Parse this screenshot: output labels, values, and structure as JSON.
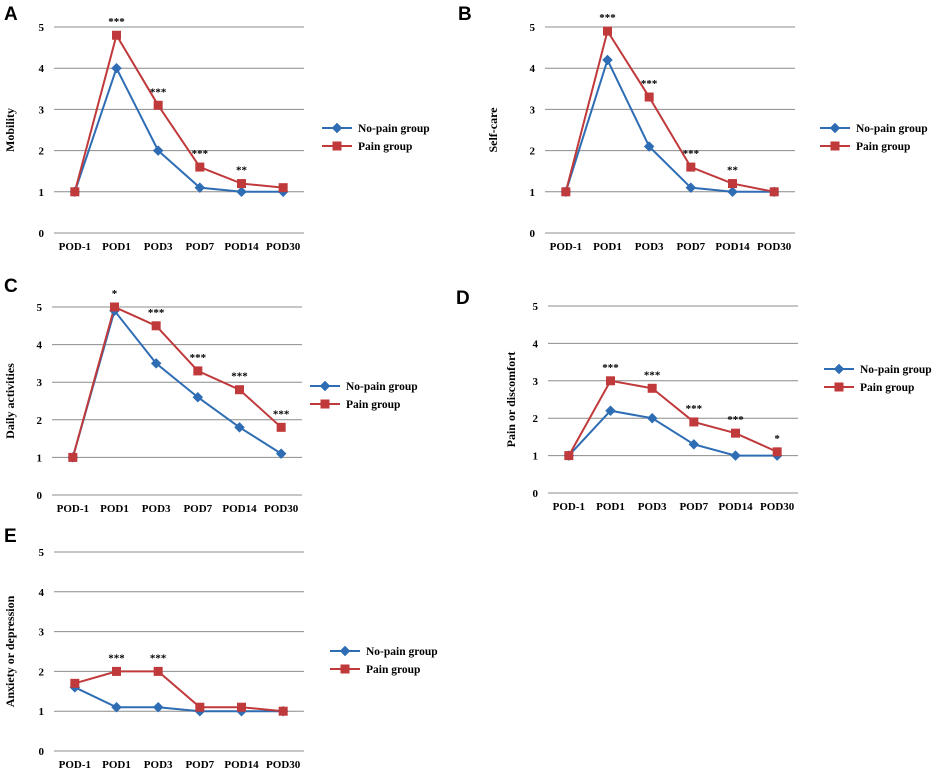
{
  "chart_data": [
    {
      "panel": "A",
      "type": "line",
      "ylabel": "Mobility",
      "ylim": [
        0,
        5
      ],
      "yticks": [
        0,
        1,
        2,
        3,
        4,
        5
      ],
      "categories": [
        "POD-1",
        "POD1",
        "POD3",
        "POD7",
        "POD14",
        "POD30"
      ],
      "series": [
        {
          "name": "No-pain group",
          "color": "#2e6db4",
          "marker": "diamond",
          "values": [
            1.0,
            4.0,
            2.0,
            1.1,
            1.0,
            1.0
          ]
        },
        {
          "name": "Pain group",
          "color": "#c0393b",
          "marker": "square",
          "values": [
            1.0,
            4.8,
            3.1,
            1.6,
            1.2,
            1.1
          ]
        }
      ],
      "significance": [
        "",
        "***",
        "***",
        "***",
        "**",
        ""
      ],
      "legend": "right"
    },
    {
      "panel": "B",
      "type": "line",
      "ylabel": "Self-care",
      "ylim": [
        0,
        5
      ],
      "yticks": [
        0,
        1,
        2,
        3,
        4,
        5
      ],
      "categories": [
        "POD-1",
        "POD1",
        "POD3",
        "POD7",
        "POD14",
        "POD30"
      ],
      "series": [
        {
          "name": "No-pain group",
          "color": "#2e6db4",
          "marker": "diamond",
          "values": [
            1.0,
            4.2,
            2.1,
            1.1,
            1.0,
            1.0
          ]
        },
        {
          "name": "Pain group",
          "color": "#c0393b",
          "marker": "square",
          "values": [
            1.0,
            4.9,
            3.3,
            1.6,
            1.2,
            1.0
          ]
        }
      ],
      "significance": [
        "",
        "***",
        "***",
        "***",
        "**",
        ""
      ],
      "legend": "right"
    },
    {
      "panel": "C",
      "type": "line",
      "ylabel": "Daily activities",
      "ylim": [
        0,
        5
      ],
      "yticks": [
        0,
        1,
        2,
        3,
        4,
        5
      ],
      "categories": [
        "POD-1",
        "POD1",
        "POD3",
        "POD7",
        "POD14",
        "POD30"
      ],
      "series": [
        {
          "name": "No-pain group",
          "color": "#2e6db4",
          "marker": "diamond",
          "values": [
            1.0,
            4.9,
            3.5,
            2.6,
            1.8,
            1.1
          ]
        },
        {
          "name": "Pain group",
          "color": "#c0393b",
          "marker": "square",
          "values": [
            1.0,
            5.0,
            4.5,
            3.3,
            2.8,
            1.8
          ]
        }
      ],
      "significance": [
        "",
        "*",
        "***",
        "***",
        "***",
        "***"
      ],
      "legend": "right"
    },
    {
      "panel": "D",
      "type": "line",
      "ylabel": "Pain or discomfort",
      "ylim": [
        0,
        5
      ],
      "yticks": [
        0,
        1,
        2,
        3,
        4,
        5
      ],
      "categories": [
        "POD-1",
        "POD1",
        "POD3",
        "POD7",
        "POD14",
        "POD30"
      ],
      "series": [
        {
          "name": "No-pain group",
          "color": "#2e6db4",
          "marker": "diamond",
          "values": [
            1.0,
            2.2,
            2.0,
            1.3,
            1.0,
            1.0
          ]
        },
        {
          "name": "Pain group",
          "color": "#c0393b",
          "marker": "square",
          "values": [
            1.0,
            3.0,
            2.8,
            1.9,
            1.6,
            1.1
          ]
        }
      ],
      "significance": [
        "",
        "***",
        "***",
        "***",
        "***",
        "*"
      ],
      "legend": "right"
    },
    {
      "panel": "E",
      "type": "line",
      "ylabel": "Anxiety or depression",
      "ylim": [
        0,
        5
      ],
      "yticks": [
        0,
        1,
        2,
        3,
        4,
        5
      ],
      "categories": [
        "POD-1",
        "POD1",
        "POD3",
        "POD7",
        "POD14",
        "POD30"
      ],
      "series": [
        {
          "name": "No-pain group",
          "color": "#2e6db4",
          "marker": "diamond",
          "values": [
            1.6,
            1.1,
            1.1,
            1.0,
            1.0,
            1.0
          ]
        },
        {
          "name": "Pain group",
          "color": "#c0393b",
          "marker": "square",
          "values": [
            1.7,
            2.0,
            2.0,
            1.1,
            1.1,
            1.0
          ]
        }
      ],
      "significance": [
        "",
        "***",
        "***",
        "",
        "",
        ""
      ],
      "legend": "right"
    }
  ]
}
